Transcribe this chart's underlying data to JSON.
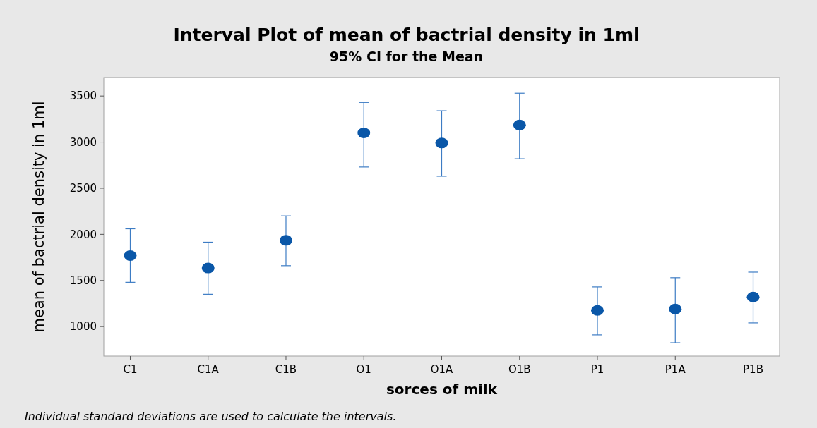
{
  "chart_data": {
    "type": "scatter",
    "title": "Interval Plot of mean of bactrial density in 1ml",
    "subtitle": "95% CI for the Mean",
    "xlabel": "sorces of milk",
    "ylabel": "mean of bactrial density in 1ml",
    "categories": [
      "C1",
      "C1A",
      "C1B",
      "O1",
      "O1A",
      "O1B",
      "P1",
      "P1A",
      "P1B"
    ],
    "series": [
      {
        "color": "#0a57a8",
        "values": [
          1770,
          1635,
          1935,
          3100,
          2990,
          3185,
          1175,
          1190,
          1320
        ],
        "errors": [
          [
            1480,
            2060
          ],
          [
            1350,
            1915
          ],
          [
            1660,
            2200
          ],
          [
            2730,
            3430
          ],
          [
            2630,
            3340
          ],
          [
            2820,
            3530
          ],
          [
            910,
            1430
          ],
          [
            825,
            1530
          ],
          [
            1040,
            1590
          ]
        ]
      }
    ],
    "ylim": [
      680,
      3700
    ],
    "yticks": [
      1000,
      1500,
      2000,
      2500,
      3000,
      3500
    ],
    "marker": "circle",
    "grid": false,
    "annotations": [
      "Individual standard deviations are used to calculate the intervals."
    ]
  }
}
